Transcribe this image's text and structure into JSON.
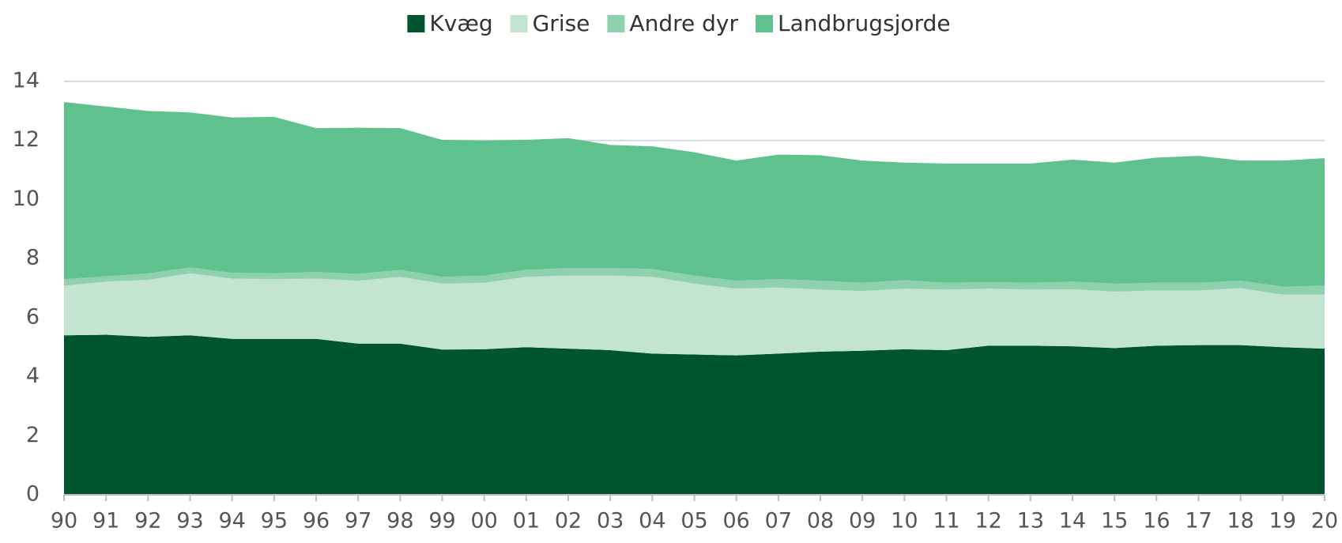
{
  "chart_data": {
    "type": "stacked_area",
    "categories": [
      "90",
      "91",
      "92",
      "93",
      "94",
      "95",
      "96",
      "97",
      "98",
      "99",
      "00",
      "01",
      "02",
      "03",
      "04",
      "05",
      "06",
      "07",
      "08",
      "09",
      "10",
      "11",
      "12",
      "13",
      "14",
      "15",
      "16",
      "17",
      "18",
      "19",
      "20"
    ],
    "series": [
      {
        "name": "Kvæg",
        "color": "#00552e",
        "values": [
          5.4,
          5.42,
          5.35,
          5.4,
          5.28,
          5.28,
          5.28,
          5.12,
          5.12,
          4.92,
          4.93,
          5.0,
          4.95,
          4.9,
          4.78,
          4.75,
          4.72,
          4.78,
          4.85,
          4.88,
          4.93,
          4.9,
          5.05,
          5.05,
          5.03,
          4.97,
          5.05,
          5.07,
          5.07,
          5.0,
          4.95
        ]
      },
      {
        "name": "Grise",
        "color": "#c2e4d0",
        "values": [
          1.68,
          1.8,
          1.93,
          2.1,
          2.04,
          2.02,
          2.04,
          2.13,
          2.26,
          2.23,
          2.25,
          2.38,
          2.47,
          2.52,
          2.6,
          2.4,
          2.26,
          2.24,
          2.1,
          2.02,
          2.05,
          2.05,
          1.93,
          1.9,
          1.93,
          1.91,
          1.87,
          1.85,
          1.93,
          1.78,
          1.83
        ]
      },
      {
        "name": "Andre dyr",
        "color": "#8fd1ae",
        "values": [
          0.22,
          0.18,
          0.22,
          0.2,
          0.2,
          0.2,
          0.23,
          0.23,
          0.24,
          0.23,
          0.24,
          0.24,
          0.26,
          0.26,
          0.27,
          0.27,
          0.27,
          0.28,
          0.3,
          0.28,
          0.29,
          0.23,
          0.22,
          0.23,
          0.26,
          0.27,
          0.26,
          0.26,
          0.25,
          0.27,
          0.3
        ]
      },
      {
        "name": "Landbrugsjorde",
        "color": "#5fc18e",
        "values": [
          6.0,
          5.75,
          5.5,
          5.25,
          5.26,
          5.3,
          4.87,
          4.95,
          4.8,
          4.64,
          4.58,
          4.4,
          4.4,
          4.17,
          4.15,
          4.18,
          4.07,
          4.22,
          4.25,
          4.14,
          3.98,
          4.04,
          4.02,
          4.04,
          4.13,
          4.1,
          4.24,
          4.3,
          4.07,
          4.27,
          4.32
        ]
      }
    ],
    "ylim": [
      0,
      14
    ],
    "yticks": [
      0,
      2,
      4,
      6,
      8,
      10,
      12,
      14
    ],
    "grid": true,
    "legend": "top"
  }
}
